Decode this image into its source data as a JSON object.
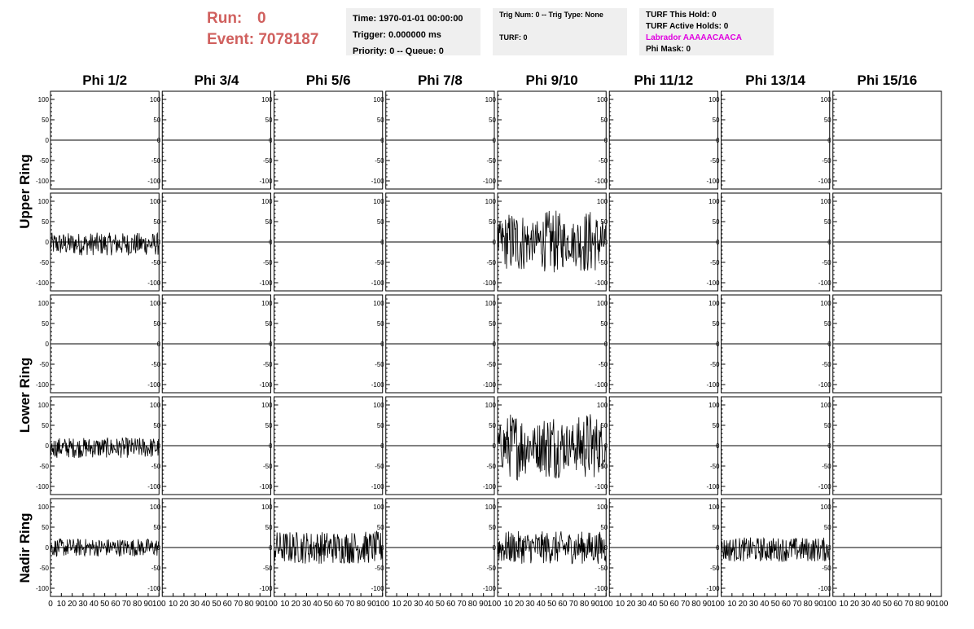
{
  "header": {
    "run_label": "Run:",
    "run_value": "0",
    "event_label": "Event:",
    "event_value": "7078187",
    "time": "Time: 1970-01-01 00:00:00",
    "trigger": "Trigger: 0.000000 ms",
    "priority": "Priority: 0 -- Queue: 0",
    "trig_num": "Trig Num: 0 -- Trig Type: None",
    "turf": "TURF: 0",
    "turf_this_hold": "TURF This Hold: 0",
    "turf_active_holds": "TURF Active Holds: 0",
    "labrador": "Labrador AAAAACAACA",
    "phi_mask": "Phi Mask: 0"
  },
  "colors": {
    "run_event": "#d0605e",
    "labrador": "#e000e0",
    "info_bg": "#efefef",
    "trace": "#000000"
  },
  "chart_data": {
    "type": "line",
    "columns": [
      "Phi 1/2",
      "Phi 3/4",
      "Phi 5/6",
      "Phi 7/8",
      "Phi 9/10",
      "Phi 11/12",
      "Phi 13/14",
      "Phi 15/16"
    ],
    "row_groups": [
      "Upper Ring",
      "Lower Ring",
      "Nadir Ring"
    ],
    "rows": 5,
    "ylim": [
      -120,
      120
    ],
    "y_ticks": [
      -100,
      -50,
      0,
      50,
      100
    ],
    "xlim": [
      0,
      100
    ],
    "x_tick_labels": [
      "0",
      "10",
      "20",
      "30",
      "40",
      "50",
      "60",
      "70",
      "80",
      "90",
      "100"
    ],
    "active_traces": [
      {
        "row": 1,
        "col": 0,
        "amplitude": 28,
        "center": -5
      },
      {
        "row": 1,
        "col": 4,
        "amplitude": 80,
        "center": 0
      },
      {
        "row": 3,
        "col": 0,
        "amplitude": 25,
        "center": -5
      },
      {
        "row": 3,
        "col": 4,
        "amplitude": 85,
        "center": 0
      },
      {
        "row": 4,
        "col": 0,
        "amplitude": 22,
        "center": 0
      },
      {
        "row": 4,
        "col": 2,
        "amplitude": 40,
        "center": 0
      },
      {
        "row": 4,
        "col": 4,
        "amplitude": 40,
        "center": 0
      },
      {
        "row": 4,
        "col": 6,
        "amplitude": 30,
        "center": -5
      }
    ]
  }
}
